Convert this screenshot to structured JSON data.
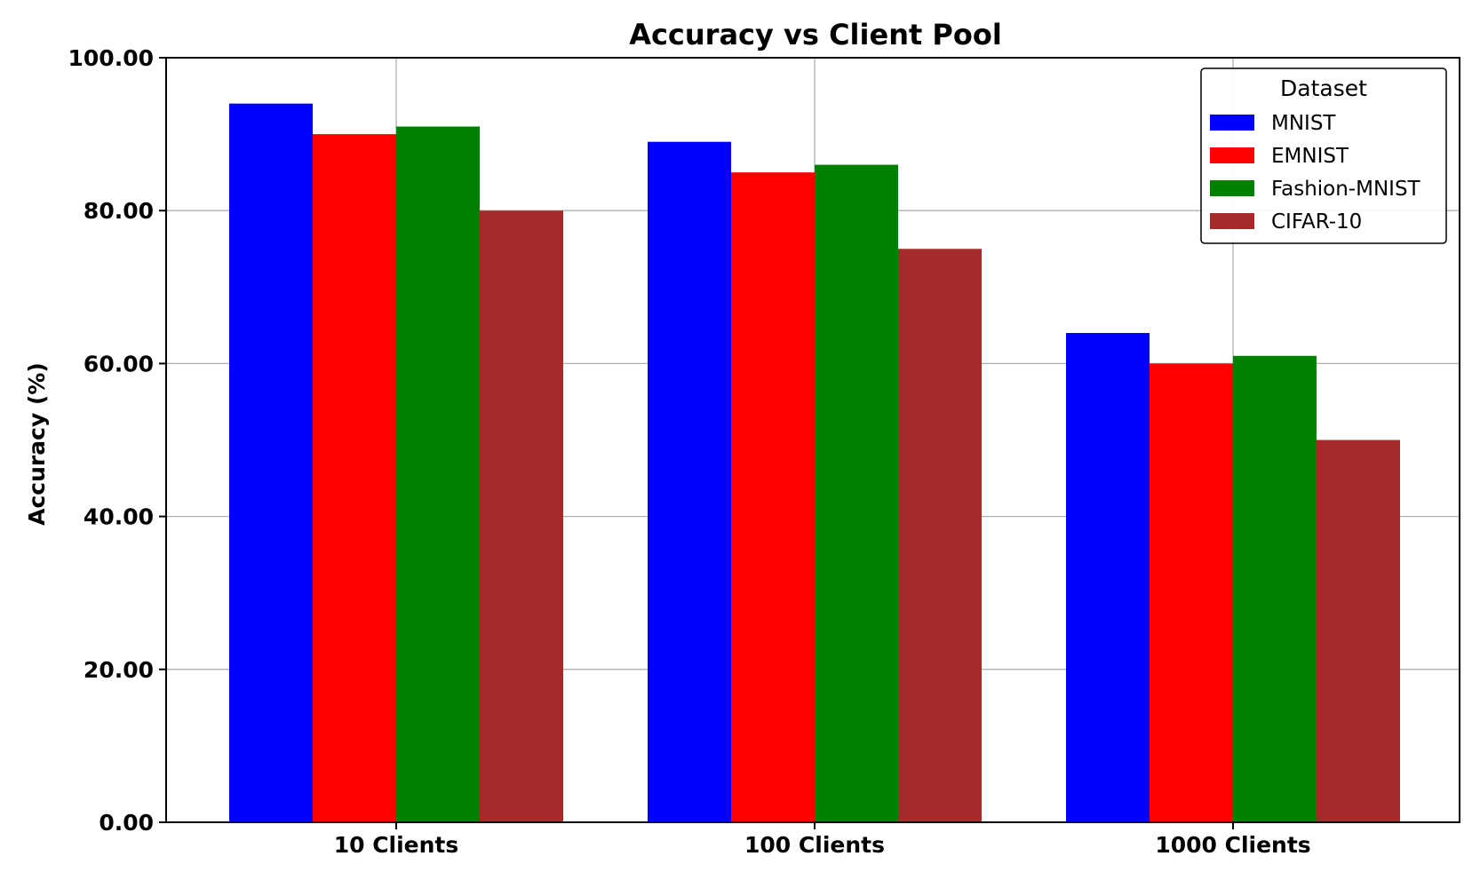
{
  "chart_data": {
    "type": "bar",
    "title": "Accuracy vs Client Pool",
    "xlabel": "",
    "ylabel": "Accuracy (%)",
    "ylim": [
      0,
      100
    ],
    "yticks": [
      "0.00",
      "20.00",
      "40.00",
      "60.00",
      "80.00",
      "100.00"
    ],
    "categories": [
      "10 Clients",
      "100 Clients",
      "1000 Clients"
    ],
    "grid": true,
    "legend": {
      "title": "Dataset",
      "placement": "top-right"
    },
    "series": [
      {
        "name": "MNIST",
        "color": "#0000ff",
        "values": [
          94,
          89,
          64
        ]
      },
      {
        "name": "EMNIST",
        "color": "#ff0000",
        "values": [
          90,
          85,
          60
        ]
      },
      {
        "name": "Fashion-MNIST",
        "color": "#008000",
        "values": [
          91,
          86,
          61
        ]
      },
      {
        "name": "CIFAR-10",
        "color": "#a52a2a",
        "values": [
          80,
          75,
          50
        ]
      }
    ]
  }
}
